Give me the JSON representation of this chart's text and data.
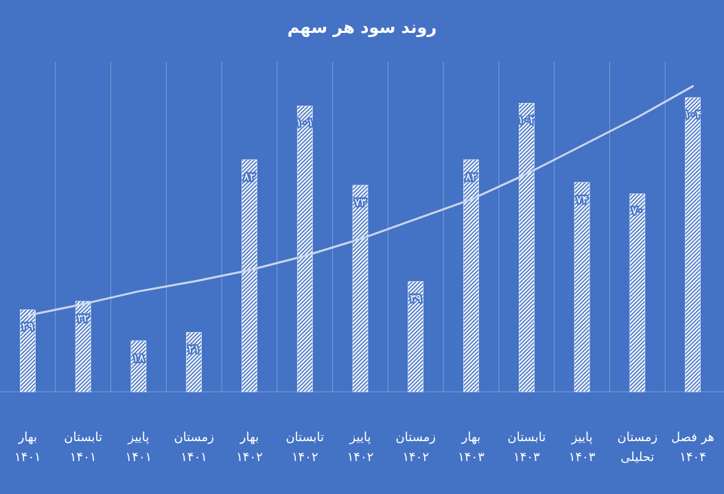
{
  "chart_data": {
    "type": "bar",
    "title": "روند سود هر سهم",
    "categories": [
      "بهار\n۱۴۰۱",
      "تابستان\n۱۴۰۱",
      "پاییز\n۱۴۰۱",
      "زمستان\n۱۴۰۱",
      "بهار\n۱۴۰۲",
      "تابستان\n۱۴۰۲",
      "پاییز\n۱۴۰۲",
      "زمستان\n۱۴۰۲",
      "بهار\n۱۴۰۳",
      "تابستان\n۱۴۰۳",
      "پاییز\n۱۴۰۳",
      "زمستان\nتحلیلی",
      "هر فصل\n۱۴۰۴"
    ],
    "series": [
      {
        "color": "#ffffff",
        "values": [
          29,
          32,
          18,
          21,
          82,
          101,
          73,
          39,
          82,
          102,
          74,
          70,
          104
        ],
        "value_labels": [
          "۲۹",
          "۳۲",
          "۱۸",
          "۲۱",
          "۸۲",
          "۱۰۱",
          "۷۳",
          "۳۹",
          "۸۲",
          "۱۰۲",
          "۷۴",
          "۷۰",
          "۱۰۴"
        ]
      },
      {
        "type": "line",
        "color": "#c9d6ee",
        "values": [
          27,
          31,
          35.5,
          39,
          43,
          48,
          54,
          61,
          68,
          77,
          87,
          97,
          108
        ]
      }
    ],
    "grid": "x"
  }
}
